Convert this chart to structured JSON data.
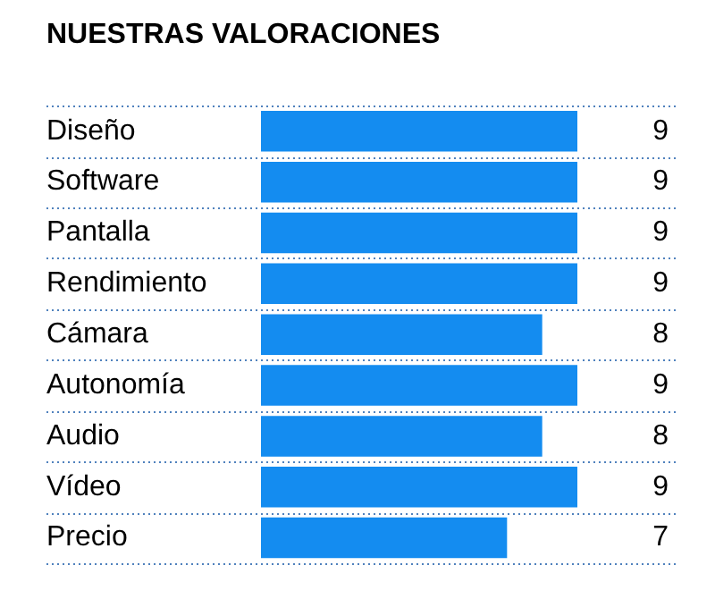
{
  "chart_data": {
    "type": "bar",
    "orientation": "horizontal",
    "title": "NUESTRAS VALORACIONES",
    "categories": [
      "Diseño",
      "Software",
      "Pantalla",
      "Rendimiento",
      "Cámara",
      "Autonomía",
      "Audio",
      "Vídeo",
      "Precio"
    ],
    "values": [
      9,
      9,
      9,
      9,
      8,
      9,
      8,
      9,
      7
    ],
    "color": "#148cf0",
    "xlim": [
      0,
      9
    ],
    "data_labels": true,
    "grid": "y",
    "tick_labels": "y"
  }
}
